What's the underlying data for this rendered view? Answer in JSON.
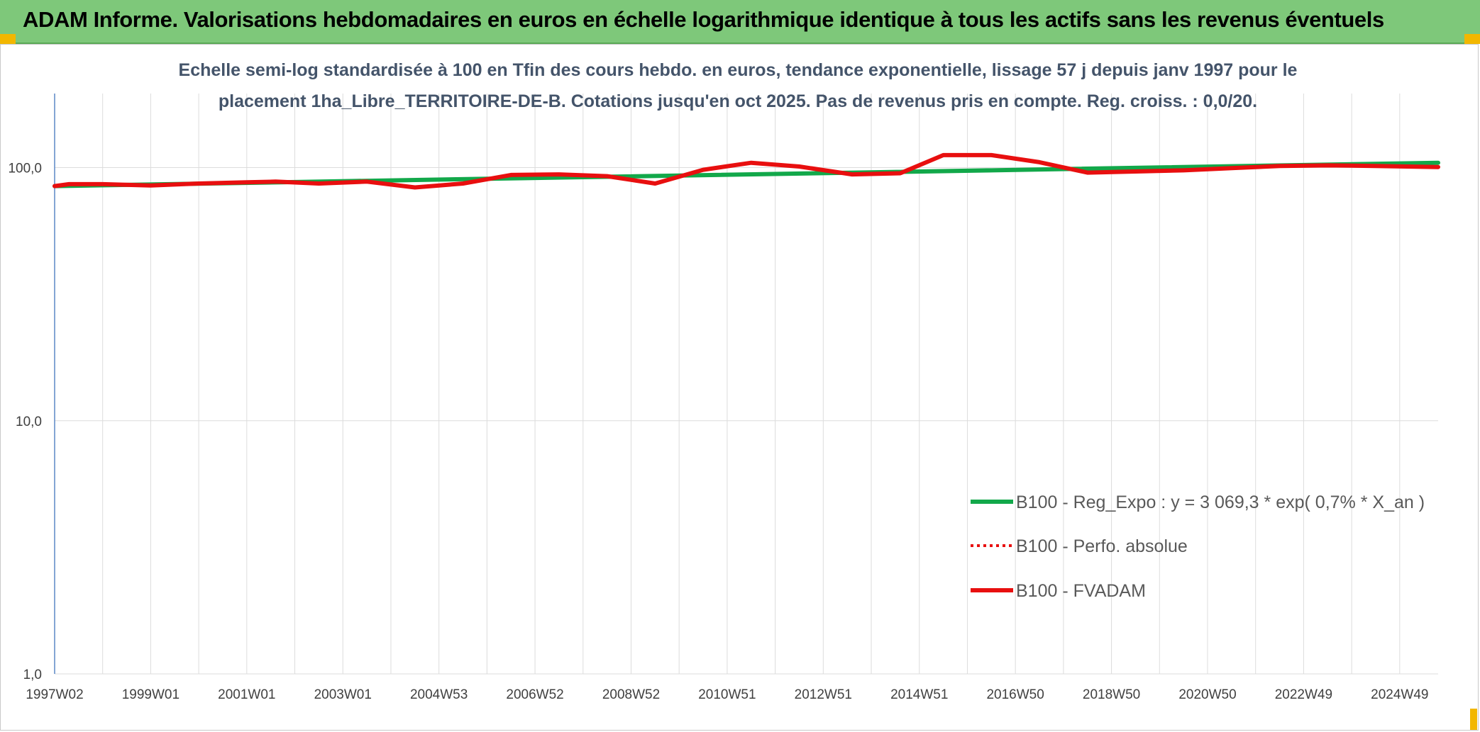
{
  "header": {
    "title": "ADAM Informe. Valorisations hebdomadaires en euros en échelle logarithmique identique à tous les actifs sans les revenus éventuels"
  },
  "colors": {
    "header_bg": "#7ec87a",
    "trend": "#12a84a",
    "fvadam": "#e80f0f",
    "perfo": "#e80f0f",
    "grid": "#dcdcdc"
  },
  "chart_data": {
    "type": "line",
    "title_lines": [
      "Echelle semi-log standardisée à 100 en Tfin des cours hebdo. en euros, tendance exponentielle, lissage 57 j depuis janv 1997 pour le",
      "placement 1ha_Libre_TERRITOIRE-DE-B. Cotations jusqu'en oct 2025. Pas de revenus pris en compte. Reg. croiss. : 0,0/20."
    ],
    "y_scale": "log",
    "ylim": [
      1,
      200
    ],
    "y_ticks": [
      {
        "value": 1,
        "label": "1,0"
      },
      {
        "value": 10,
        "label": "10,0"
      },
      {
        "value": 100,
        "label": "100,0"
      }
    ],
    "xlim": [
      1997.0,
      2025.8
    ],
    "x_ticks": [
      {
        "value": 1997.0,
        "label": "1997W02"
      },
      {
        "value": 1999.0,
        "label": "1999W01"
      },
      {
        "value": 2001.0,
        "label": "2001W01"
      },
      {
        "value": 2003.0,
        "label": "2003W01"
      },
      {
        "value": 2005.0,
        "label": "2004W53"
      },
      {
        "value": 2007.0,
        "label": "2006W52"
      },
      {
        "value": 2009.0,
        "label": "2008W52"
      },
      {
        "value": 2011.0,
        "label": "2010W51"
      },
      {
        "value": 2013.0,
        "label": "2012W51"
      },
      {
        "value": 2015.0,
        "label": "2014W51"
      },
      {
        "value": 2017.0,
        "label": "2016W50"
      },
      {
        "value": 2019.0,
        "label": "2018W50"
      },
      {
        "value": 2021.0,
        "label": "2020W50"
      },
      {
        "value": 2023.0,
        "label": "2022W49"
      },
      {
        "value": 2025.0,
        "label": "2024W49"
      }
    ],
    "grid": {
      "vertical": true,
      "horizontal": true
    },
    "legend": {
      "position": "bottom-right"
    },
    "series": [
      {
        "name": "B100 - Reg_Expo : y = 3 069,3 * exp( 0,7% *  X_an )",
        "style": "solid-thick",
        "color": "#12a84a",
        "x": [
          1997.0,
          2025.8
        ],
        "y": [
          84.5,
          104.5
        ]
      },
      {
        "name": "B100 - Perfo. absolue",
        "style": "dotted",
        "color": "#e80f0f",
        "x": [],
        "y": []
      },
      {
        "name": "B100 - FVADAM",
        "style": "solid-thick",
        "color": "#e80f0f",
        "x": [
          1997.0,
          1997.3,
          1998.0,
          1999.0,
          2000.0,
          2001.0,
          2001.6,
          2002.5,
          2003.5,
          2004.5,
          2005.5,
          2006.5,
          2007.5,
          2008.5,
          2009.5,
          2010.5,
          2011.5,
          2012.5,
          2013.6,
          2014.6,
          2015.5,
          2016.5,
          2017.5,
          2018.5,
          2019.5,
          2020.5,
          2021.5,
          2022.5,
          2023.5,
          2024.5,
          2025.8
        ],
        "y": [
          84.5,
          86.0,
          86.0,
          85.0,
          86.5,
          87.5,
          88.0,
          86.5,
          88.0,
          83.5,
          86.5,
          93.5,
          94.0,
          92.5,
          86.5,
          98.0,
          104.5,
          101.0,
          94.0,
          95.0,
          112.0,
          112.0,
          105.0,
          95.5,
          96.5,
          97.5,
          99.5,
          101.5,
          102.0,
          101.5,
          100.5
        ]
      }
    ]
  }
}
